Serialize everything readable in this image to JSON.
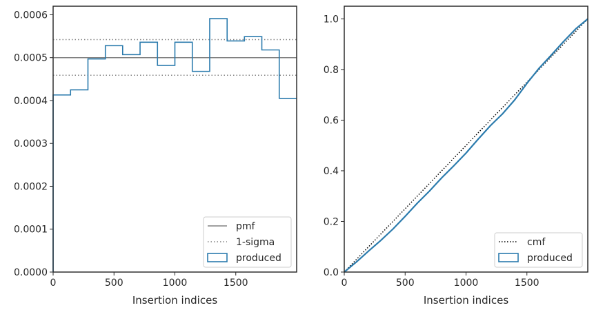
{
  "colors": {
    "produced": "#2b7bad",
    "pmf": "#808080",
    "cmf": "#000000",
    "axes": "#262626"
  },
  "chart_data": [
    {
      "type": "bar",
      "subtype": "step-histogram",
      "xlabel": "Insertion indices",
      "ylabel": "",
      "xlim": [
        0,
        2000
      ],
      "ylim": [
        0,
        0.00062
      ],
      "xticks": [
        0,
        500,
        1000,
        1500
      ],
      "xtick_labels": [
        "0",
        "500",
        "1000",
        "1500"
      ],
      "yticks": [
        0,
        0.0001,
        0.0002,
        0.0003,
        0.0004,
        0.0005,
        0.0006
      ],
      "ytick_labels": [
        "0.0000",
        "0.0001",
        "0.0002",
        "0.0003",
        "0.0004",
        "0.0005",
        "0.0006"
      ],
      "grid": false,
      "legend_position": "lower-right",
      "bin_edges": [
        0,
        143,
        286,
        429,
        571,
        714,
        857,
        1000,
        1143,
        1286,
        1429,
        1571,
        1714,
        1857,
        2000
      ],
      "series": [
        {
          "name": "produced",
          "values": [
            0.000413,
            0.000425,
            0.000497,
            0.000528,
            0.000507,
            0.000536,
            0.000482,
            0.000536,
            0.000468,
            0.000591,
            0.000539,
            0.000549,
            0.000518,
            0.000405
          ]
        }
      ],
      "reference_lines": [
        {
          "name": "pmf",
          "value": 0.0005,
          "style": "solid"
        },
        {
          "name": "1-sigma",
          "value": 0.000542,
          "style": "dotted"
        },
        {
          "name": "",
          "value": 0.000459,
          "style": "dotted"
        }
      ],
      "legend": [
        "pmf",
        "1-sigma",
        "produced"
      ]
    },
    {
      "type": "line",
      "xlabel": "Insertion indices",
      "ylabel": "",
      "xlim": [
        0,
        2000
      ],
      "ylim": [
        0,
        1.05
      ],
      "xticks": [
        0,
        500,
        1000,
        1500
      ],
      "xtick_labels": [
        "0",
        "500",
        "1000",
        "1500"
      ],
      "yticks": [
        0,
        0.2,
        0.4,
        0.6,
        0.8,
        1.0
      ],
      "ytick_labels": [
        "0.0",
        "0.2",
        "0.4",
        "0.6",
        "0.8",
        "1.0"
      ],
      "grid": false,
      "legend_position": "lower-right",
      "series": [
        {
          "name": "cmf",
          "style": "dotted",
          "x": [
            0,
            2000
          ],
          "y": [
            0,
            1.0
          ]
        },
        {
          "name": "produced",
          "style": "solid",
          "x": [
            0,
            100,
            200,
            300,
            400,
            500,
            600,
            700,
            800,
            900,
            1000,
            1100,
            1200,
            1300,
            1400,
            1500,
            1600,
            1700,
            1800,
            1900,
            2000
          ],
          "y": [
            0,
            0.04,
            0.083,
            0.125,
            0.17,
            0.22,
            0.272,
            0.32,
            0.372,
            0.42,
            0.47,
            0.525,
            0.578,
            0.625,
            0.68,
            0.745,
            0.805,
            0.857,
            0.91,
            0.96,
            1.0
          ]
        }
      ],
      "legend": [
        "cmf",
        "produced"
      ]
    }
  ]
}
